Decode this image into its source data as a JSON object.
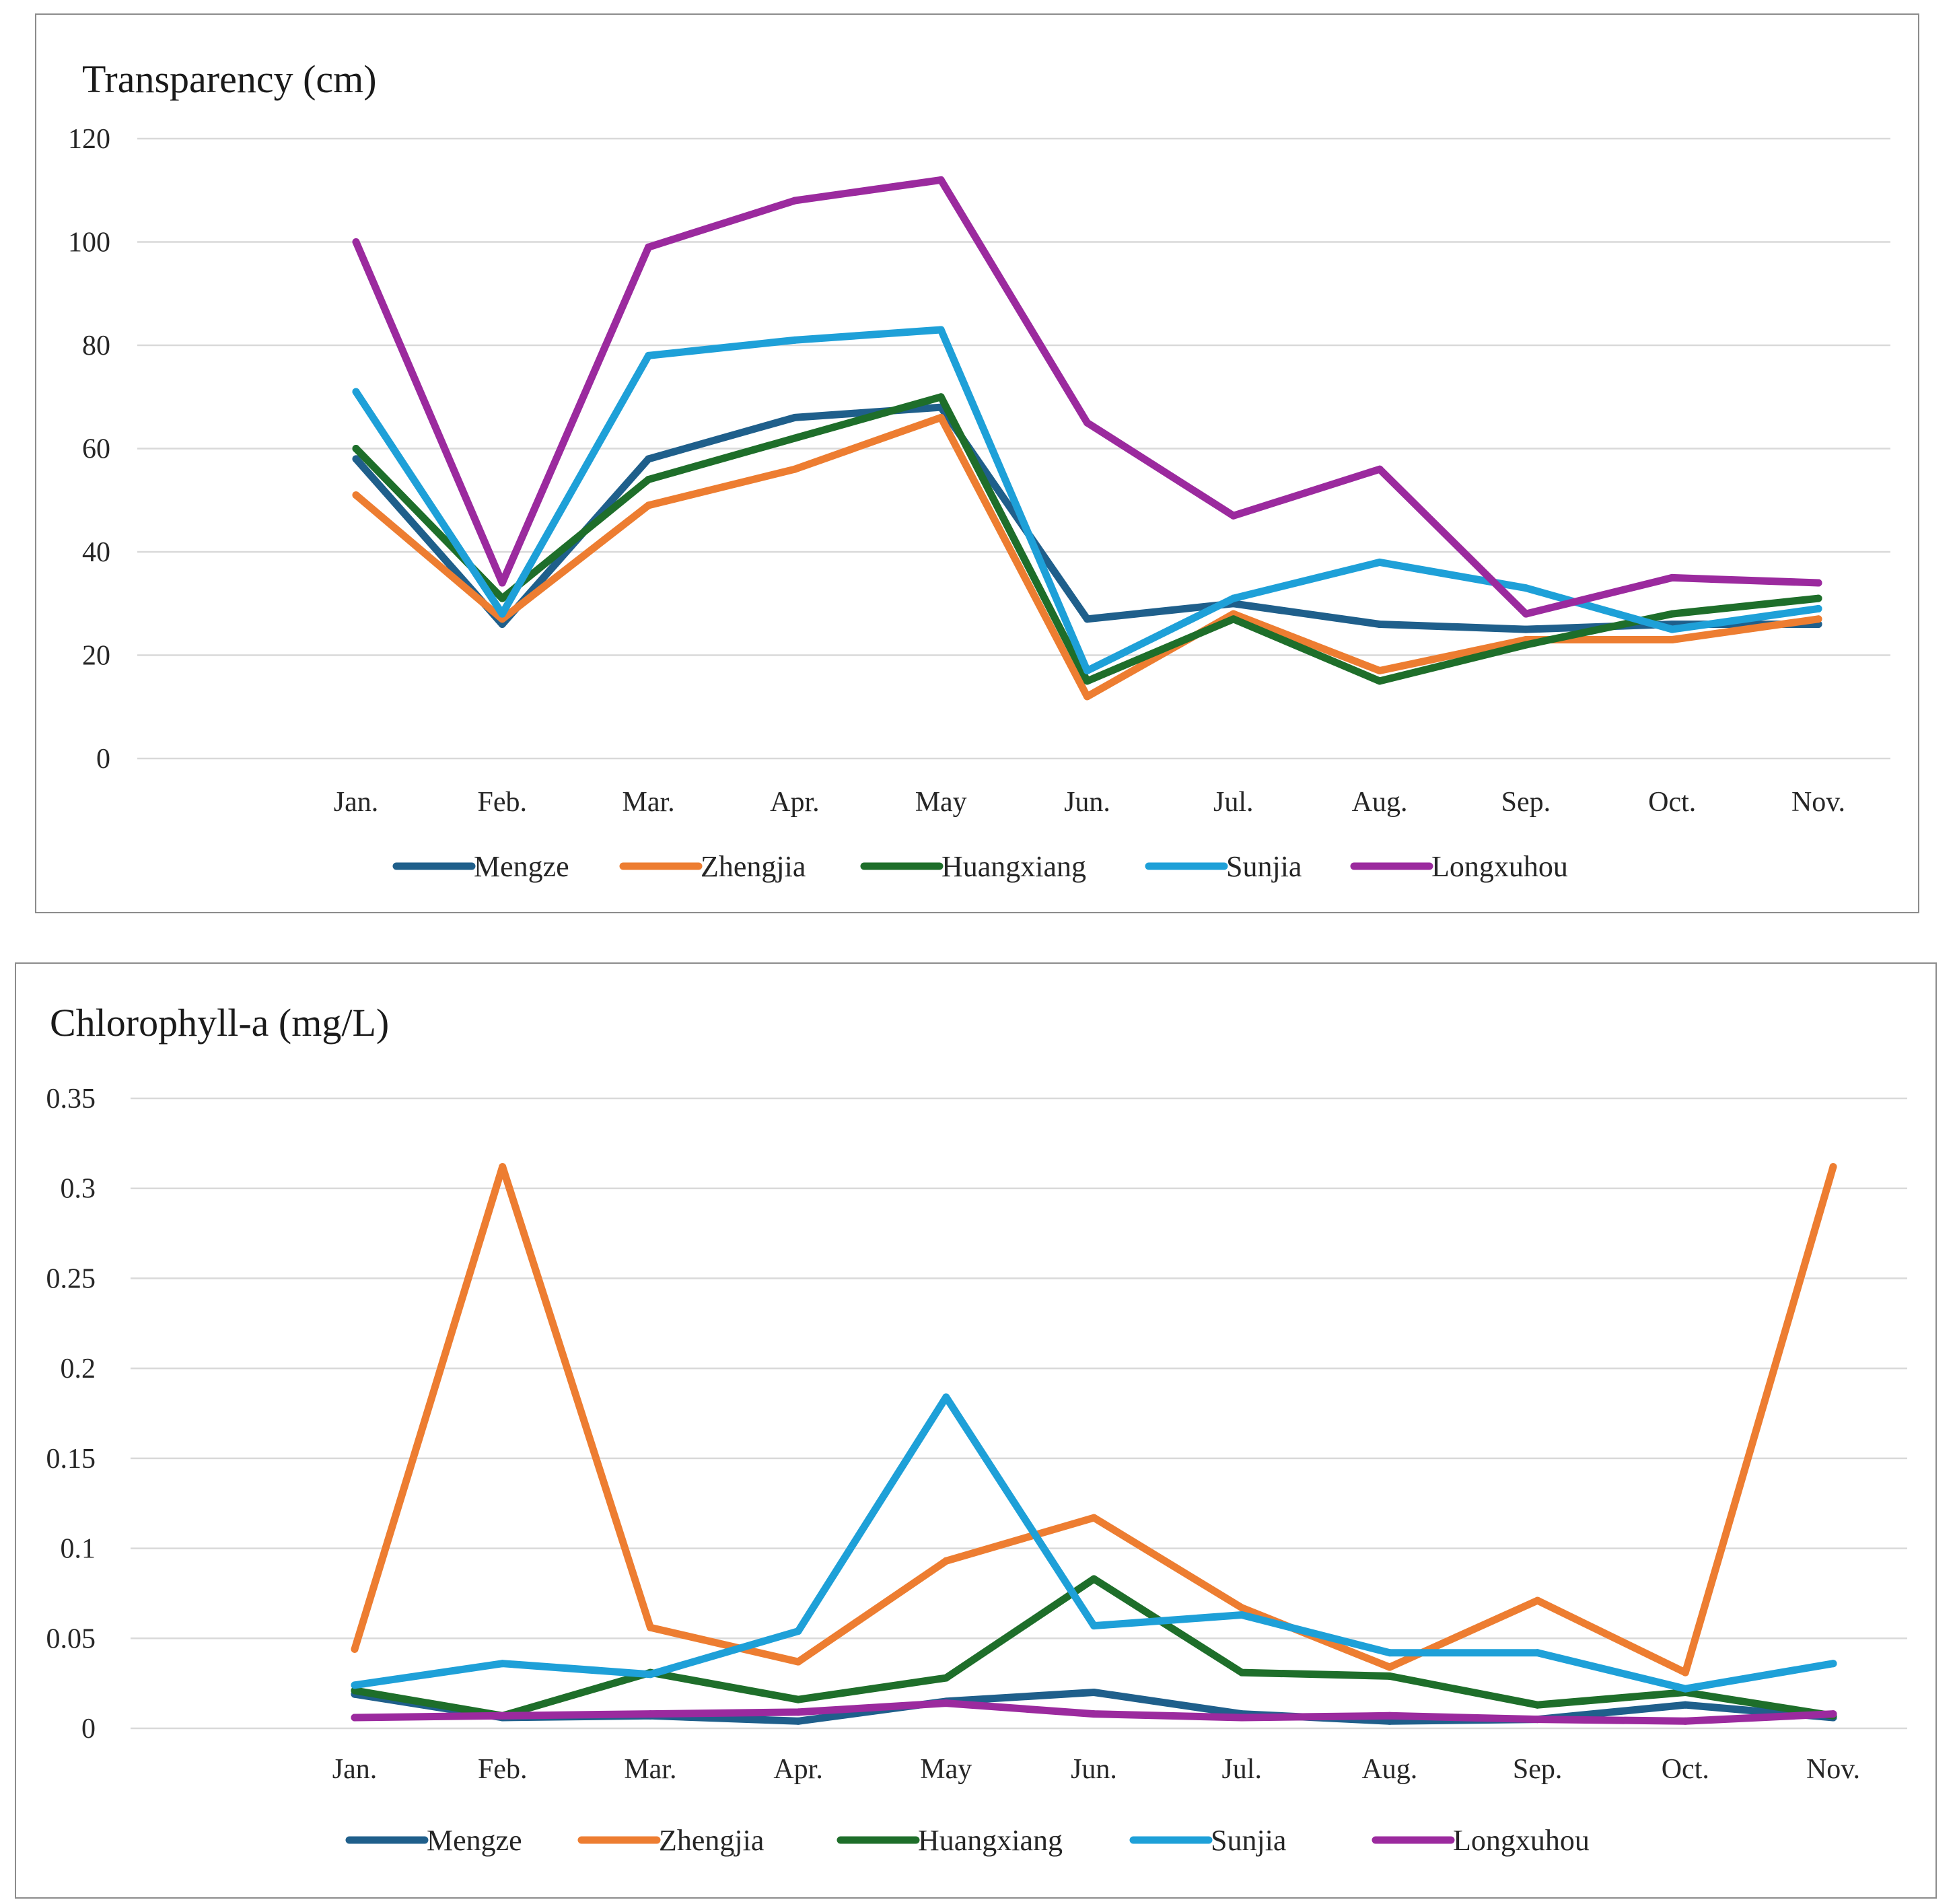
{
  "chart_data": [
    {
      "type": "line",
      "title": "Transparency (cm)",
      "xlabel": "",
      "ylabel": "",
      "categories": [
        "Jan.",
        "Feb.",
        "Mar.",
        "Apr.",
        "May",
        "Jun.",
        "Jul.",
        "Aug.",
        "Sep.",
        "Oct.",
        "Nov."
      ],
      "ylim": [
        0,
        120
      ],
      "yticks": [
        0,
        20,
        40,
        60,
        80,
        100,
        120
      ],
      "ytick_labels": [
        "0",
        "20",
        "40",
        "60",
        "80",
        "100",
        "120"
      ],
      "grid": true,
      "legend": "bottom",
      "series": [
        {
          "name": "Mengze",
          "color": "#1f5f8b",
          "values": [
            58,
            26,
            58,
            66,
            68,
            27,
            30,
            26,
            25,
            26,
            26
          ]
        },
        {
          "name": "Zhengjia",
          "color": "#ed7d31",
          "values": [
            51,
            27,
            49,
            56,
            66,
            12,
            28,
            17,
            23,
            23,
            27
          ]
        },
        {
          "name": "Huangxiang",
          "color": "#1e6e2a",
          "values": [
            60,
            31,
            54,
            62,
            70,
            15,
            27,
            15,
            22,
            28,
            31
          ]
        },
        {
          "name": "Sunjia",
          "color": "#1ea0d8",
          "values": [
            71,
            28,
            78,
            81,
            83,
            17,
            31,
            38,
            33,
            25,
            29
          ]
        },
        {
          "name": "Longxuhou",
          "color": "#9b2a9e",
          "values": [
            100,
            34,
            99,
            108,
            112,
            65,
            47,
            56,
            28,
            35,
            34
          ]
        }
      ]
    },
    {
      "type": "line",
      "title": "Chlorophyll-a (mg/L)",
      "xlabel": "",
      "ylabel": "",
      "categories": [
        "Jan.",
        "Feb.",
        "Mar.",
        "Apr.",
        "May",
        "Jun.",
        "Jul.",
        "Aug.",
        "Sep.",
        "Oct.",
        "Nov."
      ],
      "ylim": [
        0,
        0.35
      ],
      "yticks": [
        0,
        0.05,
        0.1,
        0.15,
        0.2,
        0.25,
        0.3,
        0.35
      ],
      "ytick_labels": [
        "0",
        "0.05",
        "0.1",
        "0.15",
        "0.2",
        "0.25",
        "0.3",
        "0.35"
      ],
      "grid": true,
      "legend": "bottom",
      "series": [
        {
          "name": "Mengze",
          "color": "#1f5f8b",
          "values": [
            0.019,
            0.006,
            0.007,
            0.004,
            0.015,
            0.02,
            0.008,
            0.004,
            0.005,
            0.013,
            0.006
          ]
        },
        {
          "name": "Zhengjia",
          "color": "#ed7d31",
          "values": [
            0.044,
            0.312,
            0.056,
            0.037,
            0.093,
            0.117,
            0.067,
            0.034,
            0.071,
            0.031,
            0.312
          ]
        },
        {
          "name": "Huangxiang",
          "color": "#1e6e2a",
          "values": [
            0.021,
            0.007,
            0.031,
            0.016,
            0.028,
            0.083,
            0.031,
            0.029,
            0.013,
            0.02,
            0.007
          ]
        },
        {
          "name": "Sunjia",
          "color": "#1ea0d8",
          "values": [
            0.024,
            0.036,
            0.03,
            0.054,
            0.184,
            0.057,
            0.063,
            0.042,
            0.042,
            0.022,
            0.036
          ]
        },
        {
          "name": "Longxuhou",
          "color": "#9b2a9e",
          "values": [
            0.006,
            0.007,
            0.008,
            0.009,
            0.014,
            0.008,
            0.006,
            0.007,
            0.005,
            0.004,
            0.008
          ]
        }
      ]
    }
  ]
}
